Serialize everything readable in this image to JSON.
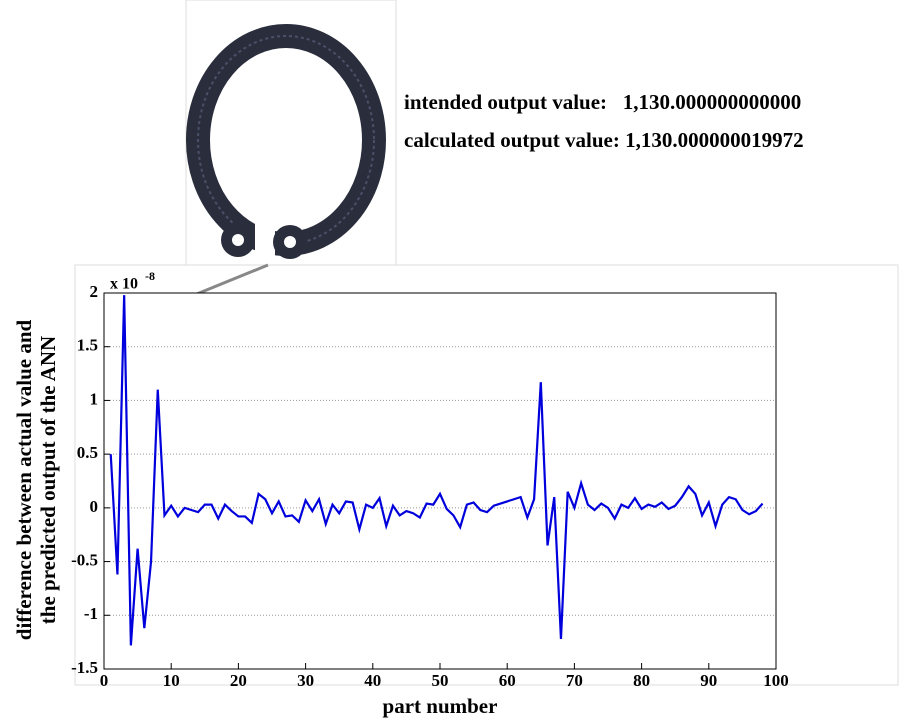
{
  "chart_data": {
    "type": "line",
    "annotations": [
      "intended output value:   1,130.000000000000",
      "calculated output value: 1,130.000000019972"
    ],
    "xlabel": "part number",
    "ylabel": [
      "difference between actual value and",
      "the predicted output of the ANN"
    ],
    "axis_multiplier": {
      "base": "x 10",
      "exponent": "-8"
    },
    "xlim": [
      0,
      100
    ],
    "xticks": [
      0,
      10,
      20,
      30,
      40,
      50,
      60,
      70,
      80,
      90,
      100
    ],
    "ylim": [
      -1.5,
      2
    ],
    "yticks": [
      -1.5,
      -1,
      -0.5,
      0,
      0.5,
      1,
      1.5,
      2
    ],
    "grid": true,
    "x": [
      1,
      2,
      3,
      4,
      5,
      6,
      7,
      8,
      9,
      10,
      11,
      12,
      13,
      14,
      15,
      16,
      17,
      18,
      19,
      20,
      21,
      22,
      23,
      24,
      25,
      26,
      27,
      28,
      29,
      30,
      31,
      32,
      33,
      34,
      35,
      36,
      37,
      38,
      39,
      40,
      41,
      42,
      43,
      44,
      45,
      46,
      47,
      48,
      49,
      50,
      51,
      52,
      53,
      54,
      55,
      56,
      57,
      58,
      59,
      60,
      61,
      62,
      63,
      64,
      65,
      66,
      67,
      68,
      69,
      70,
      71,
      72,
      73,
      74,
      75,
      76,
      77,
      78,
      79,
      80,
      81,
      82,
      83,
      84,
      85,
      86,
      87,
      88,
      89,
      90,
      91,
      92,
      93,
      94,
      95,
      96,
      97,
      98
    ],
    "series": [
      {
        "color": "#0000dd",
        "values": [
          0.5,
          -0.62,
          1.98,
          -1.28,
          -0.38,
          -1.12,
          -0.5,
          1.1,
          -0.07,
          0.02,
          -0.08,
          0.0,
          -0.02,
          -0.04,
          0.03,
          0.03,
          -0.1,
          0.03,
          -0.03,
          -0.08,
          -0.08,
          -0.14,
          0.13,
          0.08,
          -0.05,
          0.06,
          -0.08,
          -0.07,
          -0.13,
          0.07,
          -0.03,
          0.08,
          -0.15,
          0.03,
          -0.05,
          0.06,
          0.05,
          -0.2,
          0.03,
          0.0,
          0.09,
          -0.17,
          0.02,
          -0.07,
          -0.03,
          -0.05,
          -0.09,
          0.04,
          0.03,
          0.13,
          -0.01,
          -0.07,
          -0.18,
          0.03,
          0.05,
          -0.02,
          -0.04,
          0.02,
          0.04,
          0.06,
          0.08,
          0.1,
          -0.09,
          0.08,
          1.17,
          -0.35,
          0.1,
          -1.22,
          0.15,
          0.0,
          0.23,
          0.03,
          -0.02,
          0.04,
          0.0,
          -0.1,
          0.03,
          0.0,
          0.09,
          -0.01,
          0.03,
          0.01,
          0.05,
          -0.01,
          0.02,
          0.1,
          0.2,
          0.13,
          -0.07,
          0.05,
          -0.17,
          0.03,
          0.1,
          0.08,
          -0.02,
          -0.06,
          -0.03,
          0.04
        ]
      }
    ]
  }
}
